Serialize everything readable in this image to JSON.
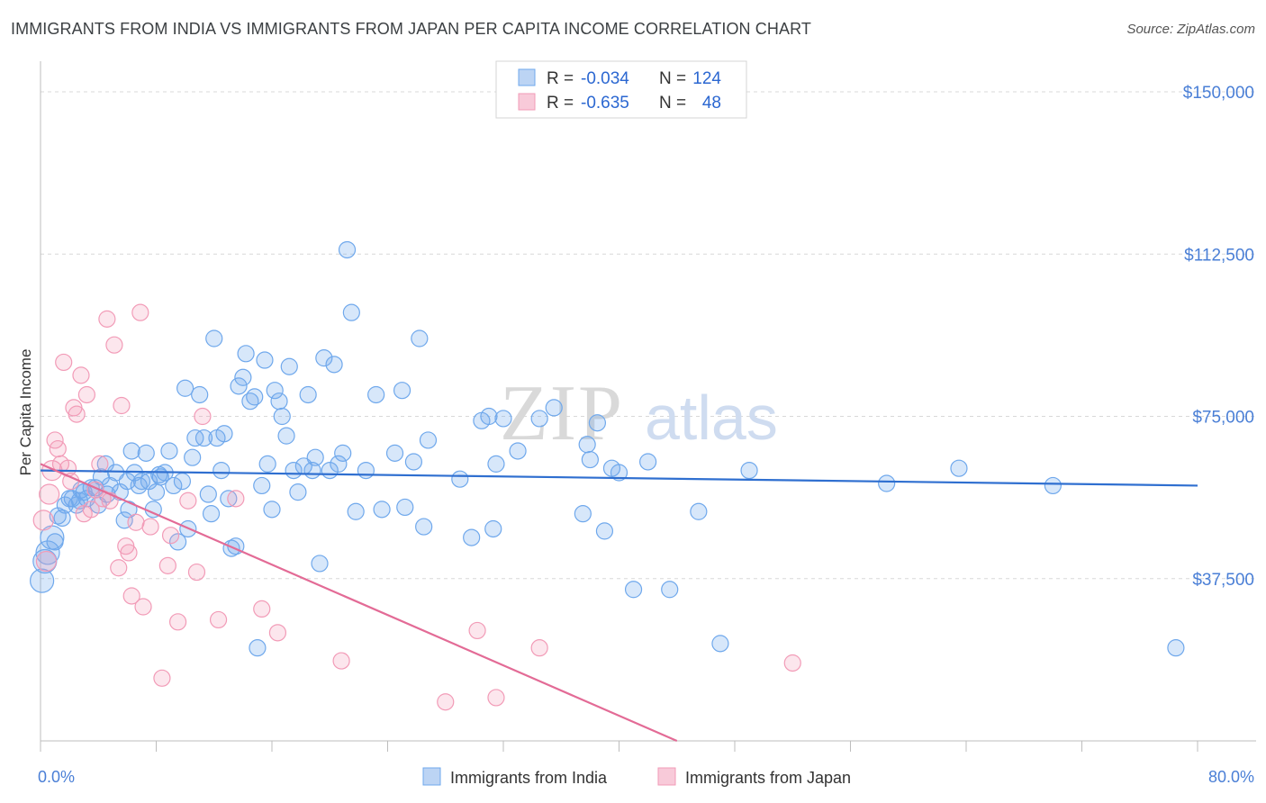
{
  "title": "IMMIGRANTS FROM INDIA VS IMMIGRANTS FROM JAPAN PER CAPITA INCOME CORRELATION CHART",
  "source": "Source: ZipAtlas.com",
  "watermark": {
    "zip": "ZIP",
    "atlas": "atlas"
  },
  "colors": {
    "india": "#6fa8ec",
    "japan": "#f29bb7",
    "india_line": "#2f6fd0",
    "japan_line": "#e36b96",
    "grid": "#d8d8d8",
    "tick": "#4a7fd6"
  },
  "legend": {
    "r_label": "R =",
    "n_label": "N =",
    "india": {
      "r": "-0.034",
      "n": "124"
    },
    "japan": {
      "r": "-0.635",
      "n": "48"
    }
  },
  "chart_data": {
    "type": "scatter",
    "title": "IMMIGRANTS FROM INDIA VS IMMIGRANTS FROM JAPAN PER CAPITA INCOME CORRELATION CHART",
    "xlabel": "",
    "ylabel": "Per Capita Income",
    "xlim": [
      0,
      80
    ],
    "ylim": [
      0,
      155000
    ],
    "x_tick_labels": [
      "0.0%",
      "80.0%"
    ],
    "y_ticks": [
      37500,
      75000,
      112500,
      150000
    ],
    "y_tick_labels": [
      "$37,500",
      "$75,000",
      "$112,500",
      "$150,000"
    ],
    "series": [
      {
        "name": "Immigrants from India",
        "trend": {
          "x": [
            0,
            80
          ],
          "y": [
            62500,
            59000
          ]
        },
        "points": [
          [
            0.1,
            37000
          ],
          [
            0.3,
            41500
          ],
          [
            0.5,
            43500
          ],
          [
            0.8,
            47000
          ],
          [
            1.0,
            46000
          ],
          [
            1.2,
            52000
          ],
          [
            1.5,
            51500
          ],
          [
            1.7,
            54500
          ],
          [
            2.0,
            56000
          ],
          [
            2.2,
            56000
          ],
          [
            2.5,
            54500
          ],
          [
            2.7,
            55500
          ],
          [
            3.0,
            57500
          ],
          [
            3.2,
            56000
          ],
          [
            3.5,
            58500
          ],
          [
            3.8,
            58500
          ],
          [
            4.0,
            54500
          ],
          [
            4.2,
            61000
          ],
          [
            4.5,
            64000
          ],
          [
            4.8,
            59000
          ],
          [
            5.2,
            62000
          ],
          [
            5.5,
            57500
          ],
          [
            5.8,
            51000
          ],
          [
            6.0,
            60000
          ],
          [
            6.3,
            67000
          ],
          [
            6.5,
            62000
          ],
          [
            6.8,
            59000
          ],
          [
            7.0,
            60000
          ],
          [
            7.3,
            66500
          ],
          [
            7.5,
            60000
          ],
          [
            7.8,
            53500
          ],
          [
            8.0,
            57500
          ],
          [
            8.3,
            61000
          ],
          [
            8.6,
            62000
          ],
          [
            8.9,
            67000
          ],
          [
            9.2,
            59000
          ],
          [
            9.5,
            46000
          ],
          [
            9.8,
            60000
          ],
          [
            10.0,
            81500
          ],
          [
            10.2,
            49000
          ],
          [
            10.5,
            65500
          ],
          [
            10.7,
            70000
          ],
          [
            11.0,
            80000
          ],
          [
            11.3,
            70000
          ],
          [
            11.6,
            57000
          ],
          [
            11.8,
            52500
          ],
          [
            12.0,
            93000
          ],
          [
            12.2,
            70000
          ],
          [
            12.5,
            62500
          ],
          [
            12.7,
            71000
          ],
          [
            13.0,
            56000
          ],
          [
            13.2,
            44500
          ],
          [
            13.5,
            45000
          ],
          [
            13.7,
            82000
          ],
          [
            14.0,
            84000
          ],
          [
            14.2,
            89500
          ],
          [
            14.5,
            78500
          ],
          [
            14.8,
            79500
          ],
          [
            15.0,
            21500
          ],
          [
            15.3,
            59000
          ],
          [
            15.5,
            88000
          ],
          [
            15.7,
            64000
          ],
          [
            16.0,
            53500
          ],
          [
            16.2,
            81000
          ],
          [
            16.5,
            78500
          ],
          [
            16.7,
            75000
          ],
          [
            17.0,
            70500
          ],
          [
            17.2,
            86500
          ],
          [
            17.5,
            62500
          ],
          [
            17.8,
            57500
          ],
          [
            18.2,
            63500
          ],
          [
            18.5,
            80000
          ],
          [
            18.8,
            62500
          ],
          [
            19.0,
            65500
          ],
          [
            19.3,
            41000
          ],
          [
            19.6,
            88500
          ],
          [
            20.0,
            62500
          ],
          [
            20.3,
            87000
          ],
          [
            20.6,
            64000
          ],
          [
            20.9,
            66500
          ],
          [
            21.2,
            113500
          ],
          [
            21.5,
            99000
          ],
          [
            21.8,
            53000
          ],
          [
            22.5,
            62500
          ],
          [
            23.2,
            80000
          ],
          [
            23.6,
            53500
          ],
          [
            24.5,
            66500
          ],
          [
            25.0,
            81000
          ],
          [
            25.2,
            54000
          ],
          [
            25.8,
            64500
          ],
          [
            26.2,
            93000
          ],
          [
            26.5,
            49500
          ],
          [
            26.8,
            69500
          ],
          [
            29.0,
            60500
          ],
          [
            29.8,
            47000
          ],
          [
            30.5,
            74000
          ],
          [
            31.0,
            75000
          ],
          [
            31.3,
            49000
          ],
          [
            31.5,
            64000
          ],
          [
            32.0,
            74500
          ],
          [
            33.0,
            67000
          ],
          [
            34.5,
            74500
          ],
          [
            35.5,
            77000
          ],
          [
            37.5,
            52500
          ],
          [
            37.8,
            68500
          ],
          [
            38.0,
            65000
          ],
          [
            38.5,
            73500
          ],
          [
            39.0,
            48500
          ],
          [
            39.5,
            63000
          ],
          [
            40.0,
            62000
          ],
          [
            41.0,
            35000
          ],
          [
            42.0,
            64500
          ],
          [
            43.5,
            35000
          ],
          [
            45.5,
            53000
          ],
          [
            47.0,
            22500
          ],
          [
            49.0,
            62500
          ],
          [
            58.5,
            59500
          ],
          [
            63.5,
            63000
          ],
          [
            70.0,
            59000
          ],
          [
            78.5,
            21500
          ],
          [
            2.8,
            58000
          ],
          [
            4.6,
            57000
          ],
          [
            6.1,
            53500
          ],
          [
            8.2,
            61500
          ]
        ]
      },
      {
        "name": "Immigrants from Japan",
        "trend": {
          "x": [
            0,
            44
          ],
          "y": [
            64000,
            0
          ]
        },
        "points": [
          [
            0.2,
            51000
          ],
          [
            0.4,
            41500
          ],
          [
            0.6,
            57000
          ],
          [
            0.8,
            62500
          ],
          [
            1.0,
            69500
          ],
          [
            1.2,
            67500
          ],
          [
            1.4,
            64000
          ],
          [
            1.6,
            87500
          ],
          [
            1.9,
            63000
          ],
          [
            2.1,
            60000
          ],
          [
            2.3,
            77000
          ],
          [
            2.5,
            75500
          ],
          [
            2.8,
            84500
          ],
          [
            3.0,
            52500
          ],
          [
            3.2,
            80000
          ],
          [
            3.5,
            53500
          ],
          [
            3.8,
            58000
          ],
          [
            4.1,
            64000
          ],
          [
            4.3,
            56000
          ],
          [
            4.6,
            97500
          ],
          [
            4.8,
            55500
          ],
          [
            5.1,
            91500
          ],
          [
            5.4,
            40000
          ],
          [
            5.6,
            77500
          ],
          [
            5.9,
            45000
          ],
          [
            6.1,
            43500
          ],
          [
            6.3,
            33500
          ],
          [
            6.6,
            50500
          ],
          [
            6.9,
            99000
          ],
          [
            7.1,
            31000
          ],
          [
            7.6,
            49500
          ],
          [
            8.4,
            14500
          ],
          [
            8.8,
            40500
          ],
          [
            9.0,
            47500
          ],
          [
            9.5,
            27500
          ],
          [
            10.2,
            55500
          ],
          [
            10.8,
            39000
          ],
          [
            11.2,
            75000
          ],
          [
            12.3,
            28000
          ],
          [
            13.5,
            56000
          ],
          [
            15.3,
            30500
          ],
          [
            16.4,
            25000
          ],
          [
            20.8,
            18500
          ],
          [
            28.0,
            9000
          ],
          [
            30.2,
            25500
          ],
          [
            31.5,
            10000
          ],
          [
            34.5,
            21500
          ],
          [
            52.0,
            18000
          ]
        ]
      }
    ],
    "legend_placement": "top-center",
    "bottom_legend": [
      "Immigrants from India",
      "Immigrants from Japan"
    ]
  }
}
